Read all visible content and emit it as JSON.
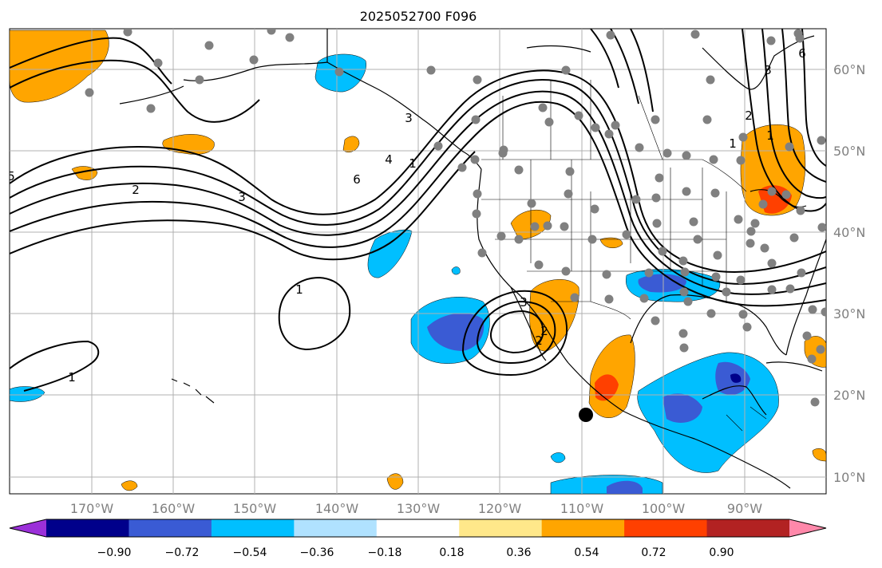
{
  "title": "2025052700 F096",
  "lon_labels": [
    "170°W",
    "160°W",
    "150°W",
    "140°W",
    "130°W",
    "120°W",
    "110°W",
    "100°W",
    "90°W"
  ],
  "lat_labels": [
    "60°N",
    "50°N",
    "40°N",
    "30°N",
    "20°N",
    "10°N"
  ],
  "colorbar": {
    "tick_labels": [
      "−0.90",
      "−0.72",
      "−0.54",
      "−0.36",
      "−0.18",
      "0.18",
      "0.36",
      "0.54",
      "0.72",
      "0.90"
    ],
    "colors": [
      "#9b30d9",
      "#00008b",
      "#3a5bd4",
      "#00bfff",
      "#b0e2ff",
      "#ffffff",
      "#ffe88a",
      "#ffa500",
      "#ff4000",
      "#b22222",
      "#ff88aa"
    ]
  },
  "contour_labels": [
    "2",
    "3",
    "6",
    "4",
    "1",
    "1",
    "2",
    "3",
    "2",
    "3",
    "1",
    "1",
    "6",
    "3",
    "2",
    "1",
    "5"
  ],
  "marker_color": "#808080"
}
